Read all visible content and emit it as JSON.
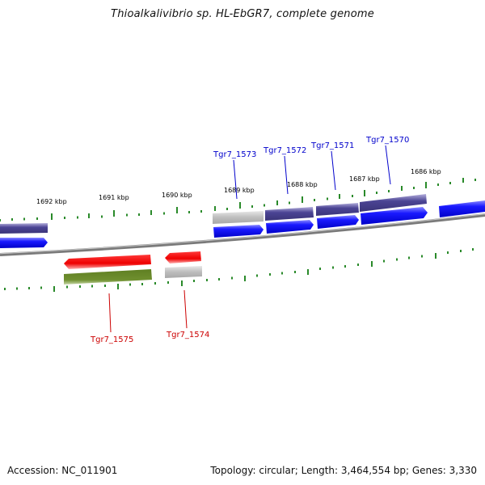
{
  "title": "Thioalkalivibrio sp. HL-EbGR7, complete genome",
  "footer": {
    "accession": "Accession: NC_011901",
    "summary": "Topology: circular; Length: 3,464,554 bp; Genes: 3,330"
  },
  "colors": {
    "tick": "#2a8a2a",
    "backbone": "#7a7a7a",
    "forward_gene_blue": "#0000ee",
    "forward_gene_slate": "#4b4494",
    "reverse_gene_red": "#ee0000",
    "reverse_gene_olive": "#5f7f22",
    "pseudo_gray": "#b8b8b8",
    "label_blue": "#0000cc",
    "label_red": "#cc0000"
  },
  "ticks": {
    "major": [
      {
        "label": "1692 kbp"
      },
      {
        "label": "1691 kbp"
      },
      {
        "label": "1690 kbp"
      },
      {
        "label": "1689 kbp"
      },
      {
        "label": "1688 kbp"
      },
      {
        "label": "1687 kbp"
      },
      {
        "label": "1686 kbp"
      }
    ]
  },
  "genes": {
    "forward_labels": [
      "Tgr7_1573",
      "Tgr7_1572",
      "Tgr7_1571",
      "Tgr7_1570"
    ],
    "reverse_labels": [
      "Tgr7_1575",
      "Tgr7_1574"
    ]
  }
}
